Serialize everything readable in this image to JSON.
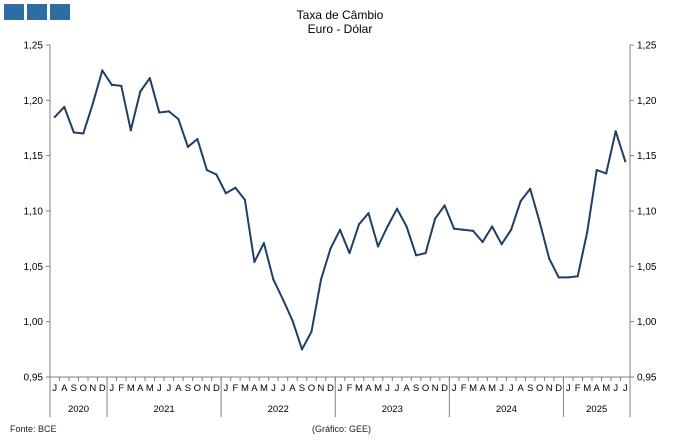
{
  "title": "Taxa de Câmbio",
  "subtitle": "Euro - Dólar",
  "source": "Fonte: BCE",
  "credit": "(Gráfico: GEE)",
  "colors": {
    "line": "#1f3f66",
    "axis": "#808080",
    "logo": "#2e6ca4"
  },
  "chart_data": {
    "type": "line",
    "title": "Taxa de Câmbio",
    "subtitle": "Euro - Dólar",
    "xlabel": "",
    "ylabel": "",
    "ylim": [
      0.95,
      1.25
    ],
    "yticks": [
      "0,95",
      "1,00",
      "1,05",
      "1,10",
      "1,15",
      "1,20",
      "1,25"
    ],
    "grid": false,
    "legend": "none",
    "x": [
      "2020-07",
      "2020-08",
      "2020-09",
      "2020-10",
      "2020-11",
      "2020-12",
      "2021-01",
      "2021-02",
      "2021-03",
      "2021-04",
      "2021-05",
      "2021-06",
      "2021-07",
      "2021-08",
      "2021-09",
      "2021-10",
      "2021-11",
      "2021-12",
      "2022-01",
      "2022-02",
      "2022-03",
      "2022-04",
      "2022-05",
      "2022-06",
      "2022-07",
      "2022-08",
      "2022-09",
      "2022-10",
      "2022-11",
      "2022-12",
      "2023-01",
      "2023-02",
      "2023-03",
      "2023-04",
      "2023-05",
      "2023-06",
      "2023-07",
      "2023-08",
      "2023-09",
      "2023-10",
      "2023-11",
      "2023-12",
      "2024-01",
      "2024-02",
      "2024-03",
      "2024-04",
      "2024-05",
      "2024-06",
      "2024-07",
      "2024-08",
      "2024-09",
      "2024-10",
      "2024-11",
      "2024-12",
      "2025-01",
      "2025-02",
      "2025-03",
      "2025-04",
      "2025-05",
      "2025-06",
      "2025-07"
    ],
    "month_labels": [
      "J",
      "A",
      "S",
      "O",
      "N",
      "D",
      "J",
      "F",
      "M",
      "A",
      "M",
      "J",
      "J",
      "A",
      "S",
      "O",
      "N",
      "D",
      "J",
      "F",
      "M",
      "A",
      "M",
      "J",
      "J",
      "A",
      "S",
      "O",
      "N",
      "D",
      "J",
      "F",
      "M",
      "A",
      "M",
      "J",
      "J",
      "A",
      "S",
      "O",
      "N",
      "D",
      "J",
      "F",
      "M",
      "A",
      "M",
      "J",
      "J",
      "A",
      "S",
      "O",
      "N",
      "D",
      "J",
      "F",
      "M",
      "A",
      "M",
      "J",
      "J"
    ],
    "year_groups": [
      {
        "label": "2020",
        "months": 6
      },
      {
        "label": "2021",
        "months": 12
      },
      {
        "label": "2022",
        "months": 12
      },
      {
        "label": "2023",
        "months": 12
      },
      {
        "label": "2024",
        "months": 12
      },
      {
        "label": "2025",
        "months": 7
      }
    ],
    "series": [
      {
        "values": [
          1.185,
          1.194,
          1.171,
          1.17,
          1.197,
          1.227,
          1.214,
          1.213,
          1.173,
          1.208,
          1.22,
          1.189,
          1.19,
          1.183,
          1.158,
          1.165,
          1.137,
          1.133,
          1.116,
          1.121,
          1.11,
          1.054,
          1.071,
          1.038,
          1.02,
          1.001,
          0.975,
          0.991,
          1.038,
          1.066,
          1.083,
          1.062,
          1.088,
          1.098,
          1.068,
          1.086,
          1.102,
          1.086,
          1.06,
          1.062,
          1.093,
          1.105,
          1.084,
          1.083,
          1.082,
          1.072,
          1.086,
          1.07,
          1.083,
          1.109,
          1.12,
          1.09,
          1.057,
          1.04,
          1.04,
          1.041,
          1.081,
          1.137,
          1.134,
          1.172,
          1.145
        ]
      }
    ]
  }
}
